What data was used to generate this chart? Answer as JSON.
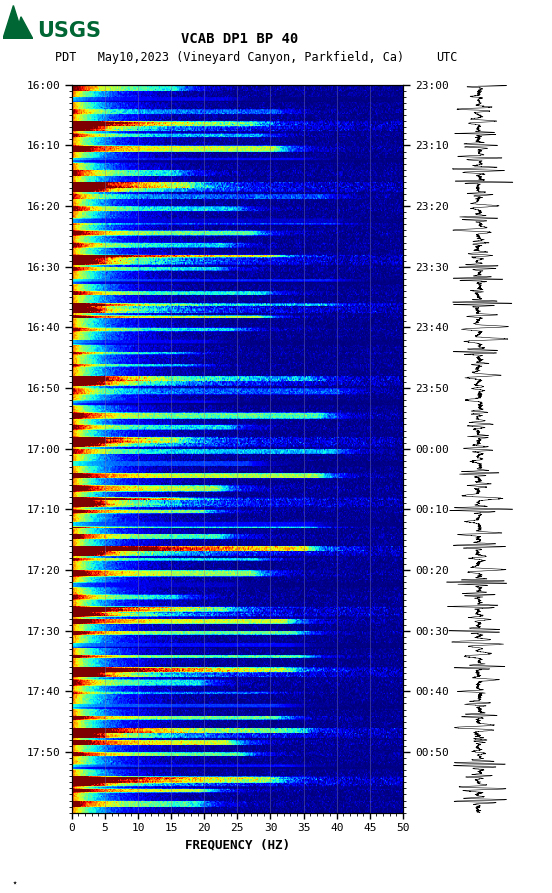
{
  "title_line1": "VCAB DP1 BP 40",
  "title_line2_left": "PDT   May10,2023 (Vineyard Canyon, Parkfield, Ca)",
  "title_line2_right": "UTC",
  "xlabel": "FREQUENCY (HZ)",
  "freq_min": 0,
  "freq_max": 50,
  "freq_ticks": [
    0,
    5,
    10,
    15,
    20,
    25,
    30,
    35,
    40,
    45,
    50
  ],
  "left_time_labels": [
    "16:00",
    "16:10",
    "16:20",
    "16:30",
    "16:40",
    "16:50",
    "17:00",
    "17:10",
    "17:20",
    "17:30",
    "17:40",
    "17:50"
  ],
  "right_time_labels": [
    "23:00",
    "23:10",
    "23:20",
    "23:30",
    "23:40",
    "23:50",
    "00:00",
    "00:10",
    "00:20",
    "00:30",
    "00:40",
    "00:50"
  ],
  "n_time_steps": 600,
  "n_freq_bins": 500,
  "bg_color": "white",
  "spectrogram_colormap": "jet",
  "vertical_lines_x": [
    5,
    10,
    15,
    20,
    25,
    30,
    35,
    40,
    45
  ],
  "usgs_logo_color": "#006633",
  "font_family": "monospace",
  "vline_color": "#7777aa",
  "vline_alpha": 0.5,
  "vline_lw": 0.6
}
